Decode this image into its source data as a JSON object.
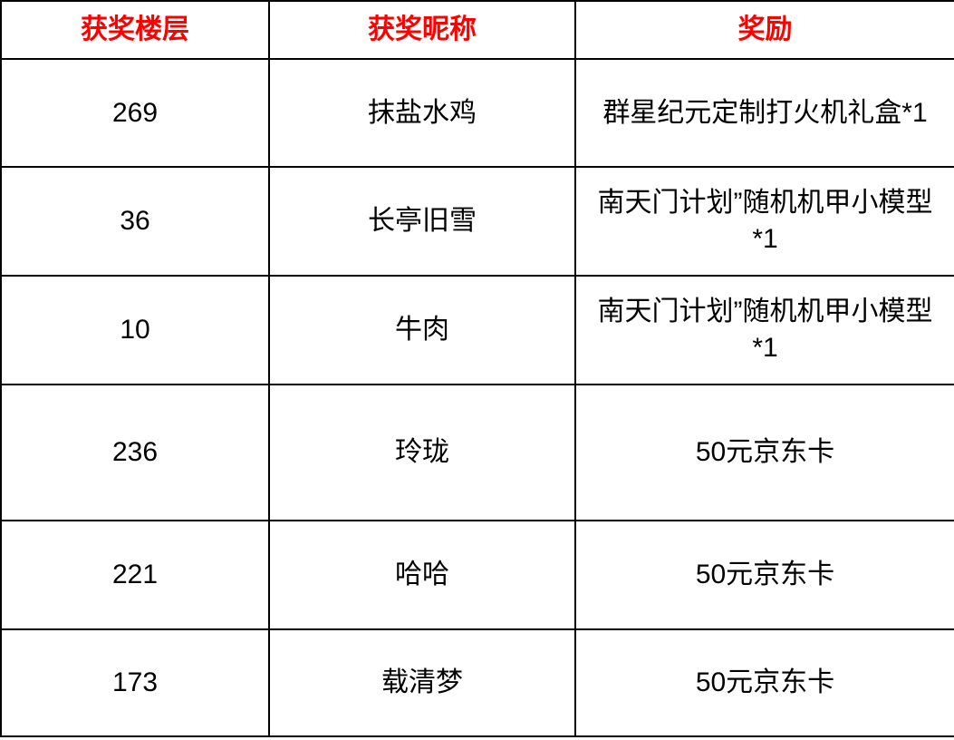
{
  "header_color": "#ff0000",
  "columns": [
    "获奖楼层",
    "获奖昵称",
    "奖励"
  ],
  "rows": [
    {
      "floor": "269",
      "nickname": "抹盐水鸡",
      "reward": "群星纪元定制打火机礼盒*1"
    },
    {
      "floor": "36",
      "nickname": "长亭旧雪",
      "reward": "南天门计划”随机机甲小模型*1"
    },
    {
      "floor": "10",
      "nickname": "牛肉",
      "reward": "南天门计划”随机机甲小模型*1"
    },
    {
      "floor": "236",
      "nickname": "玲珑",
      "reward": "50元京东卡"
    },
    {
      "floor": "221",
      "nickname": "哈哈",
      "reward": "50元京东卡"
    },
    {
      "floor": "173",
      "nickname": "载清梦",
      "reward": "50元京东卡"
    }
  ]
}
